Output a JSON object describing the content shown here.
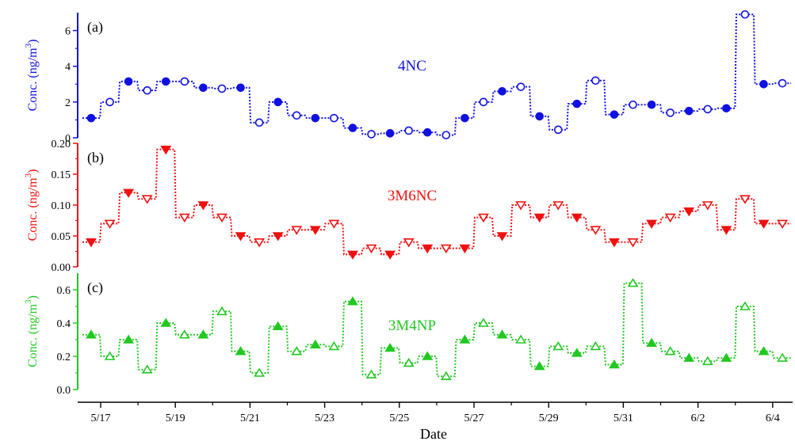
{
  "chart_data": [
    {
      "type": "line",
      "panel_tag": "(a)",
      "series_label": "4NC",
      "ylabel": "Conc. (ng/m",
      "ylabel_sup": "3",
      "ylabel_close": ")",
      "color": "#1010e0",
      "yticks": [
        "0",
        "2",
        "4",
        "6"
      ],
      "ylim": [
        0,
        7
      ],
      "marker": "circle",
      "series": [
        {
          "values": [
            1.1,
            2.0,
            3.15,
            2.65,
            3.15,
            3.15,
            2.8,
            2.75,
            2.8,
            0.85,
            2.0,
            1.25,
            1.1,
            1.1,
            0.55,
            0.2,
            0.25,
            0.4,
            0.3,
            0.15,
            1.1,
            2.0,
            2.6,
            2.85,
            1.2,
            0.45,
            1.9,
            3.2,
            1.3,
            1.85,
            1.85,
            1.4,
            1.5,
            1.6,
            1.65,
            6.9,
            3.0,
            3.05
          ],
          "filled": [
            true,
            false,
            true,
            false,
            true,
            false,
            true,
            false,
            true,
            false,
            true,
            false,
            true,
            false,
            true,
            false,
            true,
            false,
            true,
            false,
            true,
            false,
            true,
            false,
            true,
            false,
            true,
            false,
            true,
            false,
            true,
            false,
            true,
            false,
            true,
            false,
            true,
            false
          ]
        }
      ]
    },
    {
      "type": "line",
      "panel_tag": "(b)",
      "series_label": "3M6NC",
      "ylabel": "Conc. (ng/m",
      "ylabel_sup": "3",
      "ylabel_close": ")",
      "color": "#f01010",
      "yticks": [
        "0.00",
        "0.05",
        "0.10",
        "0.15",
        "0.20"
      ],
      "ylim": [
        0,
        0.2
      ],
      "marker": "triangle-down",
      "series": [
        {
          "values": [
            0.04,
            0.07,
            0.12,
            0.11,
            0.19,
            0.08,
            0.1,
            0.08,
            0.05,
            0.04,
            0.05,
            0.06,
            0.06,
            0.07,
            0.02,
            0.03,
            0.02,
            0.04,
            0.03,
            0.03,
            0.03,
            0.08,
            0.05,
            0.1,
            0.08,
            0.1,
            0.08,
            0.06,
            0.04,
            0.04,
            0.07,
            0.08,
            0.09,
            0.1,
            0.06,
            0.11,
            0.07,
            0.07
          ],
          "filled": [
            true,
            false,
            true,
            false,
            true,
            false,
            true,
            false,
            true,
            false,
            true,
            false,
            true,
            false,
            true,
            false,
            true,
            false,
            true,
            false,
            true,
            false,
            true,
            false,
            true,
            false,
            true,
            false,
            true,
            false,
            true,
            false,
            true,
            false,
            true,
            false,
            true,
            false
          ]
        }
      ]
    },
    {
      "type": "line",
      "panel_tag": "(c)",
      "series_label": "3M4NP",
      "ylabel": "Conc. (ng/m",
      "ylabel_sup": "3",
      "ylabel_close": ")",
      "color": "#22c822",
      "yticks": [
        "0.0",
        "0.2",
        "0.4",
        "0.6"
      ],
      "ylim": [
        0,
        0.7
      ],
      "marker": "triangle-up",
      "series": [
        {
          "values": [
            0.33,
            0.2,
            0.3,
            0.12,
            0.4,
            0.33,
            0.33,
            0.47,
            0.23,
            0.1,
            0.38,
            0.23,
            0.27,
            0.26,
            0.53,
            0.09,
            0.25,
            0.16,
            0.2,
            0.08,
            0.3,
            0.4,
            0.33,
            0.3,
            0.14,
            0.26,
            0.22,
            0.26,
            0.15,
            0.64,
            0.28,
            0.23,
            0.19,
            0.17,
            0.19,
            0.5,
            0.23,
            0.19
          ],
          "filled": [
            true,
            false,
            true,
            false,
            true,
            false,
            true,
            false,
            true,
            false,
            true,
            false,
            true,
            false,
            true,
            false,
            true,
            false,
            true,
            false,
            true,
            false,
            true,
            false,
            true,
            false,
            true,
            false,
            true,
            false,
            true,
            false,
            true,
            false,
            true,
            false,
            true,
            false
          ]
        }
      ]
    }
  ],
  "x_axis": {
    "title": "Date",
    "ticks": [
      "5/17",
      "5/19",
      "5/21",
      "5/23",
      "5/25",
      "5/27",
      "5/29",
      "5/31",
      "6/2",
      "6/4"
    ]
  }
}
